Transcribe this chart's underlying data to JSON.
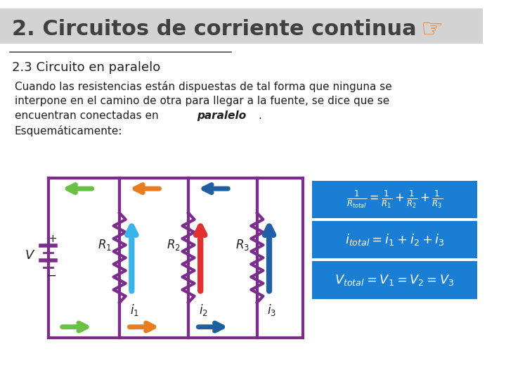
{
  "title": "2. Circuitos de corriente continua",
  "subtitle": "2.3 Circuito en paralelo",
  "body_line1": "Cuando las resistencias están dispuestas de tal forma que ninguna se",
  "body_line2": "interpone en el camino de otra para llegar a la fuente, se dice que se",
  "body_line3_pre": "encuentran conectadas en ",
  "body_line3_bold": "paralelo",
  "body_line3_post": ".",
  "body_line4": "Esquemáticamente:",
  "bg_color": "#ffffff",
  "header_bg": "#d3d3d3",
  "header_text_color": "#404040",
  "blue_box_color": "#1a7fd4",
  "circuit_color": "#7b2d8b",
  "arrow_colors": {
    "top_left": "#6abf45",
    "top_mid": "#e87c1e",
    "top_right": "#1e5fa0",
    "bot_left": "#6abf45",
    "bot_mid": "#e87c1e",
    "bot_right": "#1e5fa0",
    "i1": "#3ab4e8",
    "i2": "#e03030",
    "i3": "#2060a8"
  },
  "formula1": "$\\frac{1}{R_{total}} = \\frac{1}{R_1} + \\frac{1}{R_2} + \\frac{1}{R_3}$",
  "formula2": "$i_{total} = i_1 + i_2 + i_3$",
  "formula3": "$V_{total} = V_1 = V_2 = V_3$"
}
